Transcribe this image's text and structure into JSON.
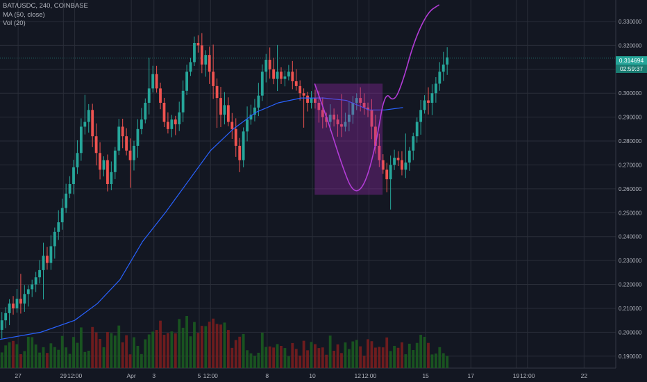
{
  "legend": {
    "symbol_line": "BAT/USDC, 240, COINBASE",
    "ma_line": "MA (50, close)",
    "vol_line": "Vol (20)"
  },
  "last_price": {
    "value": "0.314694",
    "countdown": "02:59:37"
  },
  "colors": {
    "background": "#131722",
    "grid": "#2a2e39",
    "up": "#26a69a",
    "down": "#ef5350",
    "vol_up": "#1b5e20",
    "vol_down": "#7f1d1d",
    "ma": "#2962ff",
    "pattern": "#9c27b0",
    "axis_text": "#b2b5be"
  },
  "chart_data": {
    "type": "candlestick",
    "price_axis": {
      "ylim": [
        0.185,
        0.339
      ],
      "ticks": [
        "0.330000",
        "0.320000",
        "0.310000",
        "0.300000",
        "0.290000",
        "0.280000",
        "0.270000",
        "0.260000",
        "0.250000",
        "0.240000",
        "0.230000",
        "0.220000",
        "0.210000",
        "0.200000",
        "0.190000"
      ]
    },
    "time_axis": {
      "range_days": [
        26.2,
        53.4
      ],
      "ticks": [
        {
          "label": "27",
          "t": 27
        },
        {
          "label": "29",
          "t": 29
        },
        {
          "label": "12:00",
          "t": 29.5
        },
        {
          "label": "Apr",
          "t": 32
        },
        {
          "label": "3",
          "t": 33
        },
        {
          "label": "5",
          "t": 35
        },
        {
          "label": "12:00",
          "t": 35.5
        },
        {
          "label": "8",
          "t": 38
        },
        {
          "label": "10",
          "t": 40
        },
        {
          "label": "12",
          "t": 42
        },
        {
          "label": "12:00",
          "t": 42.5
        },
        {
          "label": "15",
          "t": 45
        },
        {
          "label": "17",
          "t": 47
        },
        {
          "label": "19",
          "t": 49
        },
        {
          "label": "12:00",
          "t": 49.5
        },
        {
          "label": "22",
          "t": 52
        }
      ]
    },
    "candles": {
      "start_t": 26.2,
      "interval_days": 0.1667,
      "closes": [
        0.205,
        0.208,
        0.212,
        0.21,
        0.214,
        0.212,
        0.216,
        0.218,
        0.22,
        0.223,
        0.226,
        0.232,
        0.229,
        0.236,
        0.242,
        0.246,
        0.252,
        0.258,
        0.262,
        0.269,
        0.275,
        0.286,
        0.288,
        0.293,
        0.282,
        0.275,
        0.268,
        0.272,
        0.262,
        0.267,
        0.276,
        0.286,
        0.282,
        0.276,
        0.272,
        0.278,
        0.285,
        0.289,
        0.296,
        0.302,
        0.308,
        0.302,
        0.296,
        0.288,
        0.285,
        0.289,
        0.287,
        0.292,
        0.301,
        0.309,
        0.313,
        0.321,
        0.32,
        0.312,
        0.316,
        0.309,
        0.303,
        0.298,
        0.291,
        0.295,
        0.288,
        0.285,
        0.278,
        0.272,
        0.284,
        0.289,
        0.291,
        0.294,
        0.299,
        0.309,
        0.314,
        0.31,
        0.306,
        0.309,
        0.306,
        0.307,
        0.309,
        0.305,
        0.303,
        0.3,
        0.299,
        0.296,
        0.298,
        0.296,
        0.293,
        0.29,
        0.288,
        0.291,
        0.289,
        0.287,
        0.286,
        0.288,
        0.291,
        0.296,
        0.298,
        0.296,
        0.294,
        0.293,
        0.286,
        0.278,
        0.272,
        0.268,
        0.264,
        0.27,
        0.273,
        0.272,
        0.268,
        0.271,
        0.276,
        0.282,
        0.288,
        0.293,
        0.297,
        0.296,
        0.3,
        0.304,
        0.309,
        0.312,
        0.315
      ],
      "open_first": 0.201,
      "highs_extra": [
        0.003,
        0.005,
        0.012,
        0.019,
        0.004
      ]
    },
    "ma50": [
      [
        26.2,
        0.197
      ],
      [
        28,
        0.2
      ],
      [
        29.5,
        0.205
      ],
      [
        30.5,
        0.212
      ],
      [
        31.5,
        0.222
      ],
      [
        32.5,
        0.238
      ],
      [
        33.5,
        0.25
      ],
      [
        34.5,
        0.263
      ],
      [
        35.5,
        0.276
      ],
      [
        36.5,
        0.285
      ],
      [
        37.5,
        0.292
      ],
      [
        38.5,
        0.296
      ],
      [
        39.5,
        0.298
      ],
      [
        40.5,
        0.298
      ],
      [
        41.5,
        0.297
      ],
      [
        42.5,
        0.293
      ],
      [
        43.2,
        0.293
      ],
      [
        44,
        0.294
      ]
    ],
    "pattern_rect": {
      "t0": 40.1,
      "t1": 43.1,
      "p0": 0.2575,
      "p1": 0.304
    },
    "cup_curve": [
      [
        40.1,
        0.304
      ],
      [
        40.7,
        0.288
      ],
      [
        41.3,
        0.27
      ],
      [
        41.8,
        0.258
      ],
      [
        42.3,
        0.261
      ],
      [
        42.8,
        0.278
      ],
      [
        43.2,
        0.301
      ],
      [
        43.6,
        0.296
      ],
      [
        44,
        0.305
      ],
      [
        44.5,
        0.322
      ],
      [
        45.1,
        0.334
      ],
      [
        45.6,
        0.337
      ]
    ],
    "volume": {
      "max": 1.0
    }
  }
}
